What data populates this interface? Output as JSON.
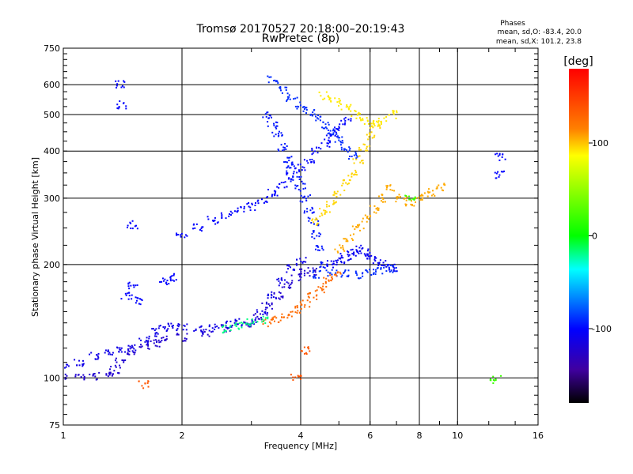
{
  "chart_data": {
    "type": "scatter",
    "title": "Tromsø 20170527 20:18:00–20:19:43",
    "subtitle": "RwPretec (8p)",
    "xlabel": "Frequency [MHz]",
    "ylabel": "Stationary phase Virtual Height [km]",
    "x_scale": "log",
    "y_scale": "log",
    "xlim": [
      1,
      16
    ],
    "ylim": [
      75,
      750
    ],
    "x_ticks": [
      1,
      2,
      4,
      6,
      8,
      10,
      16
    ],
    "y_ticks": [
      75,
      100,
      200,
      300,
      400,
      500,
      600,
      750
    ],
    "grid": true,
    "phase_stats": {
      "header": "Phases",
      "line_o": "mean, sd,O: -83.4, 20.0",
      "line_x": "mean, sd,X: 101.2, 23.8"
    },
    "colorbar": {
      "label": "[deg]",
      "range": [
        -180,
        180
      ],
      "ticks": [
        100,
        0,
        -100
      ],
      "colors": [
        "#ff0000",
        "#ff8000",
        "#ffff00",
        "#00ff00",
        "#00ffff",
        "#0000ff",
        "#4000a0",
        "#000000"
      ]
    },
    "series": [
      {
        "traces": [
          {
            "phase": -120,
            "points": [
              [
                1.0,
                100
              ],
              [
                1.1,
                101
              ],
              [
                1.2,
                101
              ],
              [
                1.3,
                102
              ],
              [
                1.35,
                105
              ],
              [
                1.4,
                110
              ],
              [
                1.5,
                118
              ],
              [
                1.6,
                122
              ],
              [
                1.7,
                124
              ],
              [
                1.8,
                126
              ],
              [
                2.0,
                128
              ],
              [
                2.3,
                132
              ],
              [
                2.6,
                135
              ],
              [
                2.9,
                140
              ],
              [
                3.1,
                145
              ],
              [
                3.3,
                155
              ],
              [
                3.5,
                165
              ],
              [
                3.7,
                175
              ],
              [
                3.9,
                185
              ],
              [
                4.1,
                190
              ],
              [
                4.3,
                192
              ]
            ]
          },
          {
            "phase": -110,
            "points": [
              [
                1.0,
                106
              ],
              [
                1.1,
                110
              ],
              [
                1.2,
                114
              ],
              [
                1.3,
                117
              ],
              [
                1.4,
                118
              ],
              [
                1.5,
                120
              ],
              [
                1.6,
                126
              ],
              [
                1.7,
                132
              ],
              [
                1.8,
                136
              ],
              [
                1.9,
                138
              ],
              [
                2.0,
                136
              ],
              [
                2.2,
                134
              ],
              [
                2.4,
                136
              ],
              [
                2.6,
                138
              ],
              [
                2.8,
                140
              ],
              [
                3.0,
                142
              ],
              [
                3.2,
                150
              ],
              [
                3.4,
                165
              ],
              [
                3.6,
                180
              ],
              [
                3.8,
                195
              ],
              [
                4.0,
                205
              ]
            ]
          },
          {
            "phase": -100,
            "points": [
              [
                2.0,
                240
              ],
              [
                2.2,
                250
              ],
              [
                2.4,
                262
              ],
              [
                2.6,
                270
              ],
              [
                2.8,
                278
              ],
              [
                3.0,
                285
              ],
              [
                3.2,
                296
              ],
              [
                3.4,
                310
              ],
              [
                3.6,
                325
              ],
              [
                3.8,
                345
              ],
              [
                4.0,
                360
              ],
              [
                4.2,
                380
              ],
              [
                4.4,
                400
              ],
              [
                4.6,
                420
              ],
              [
                4.8,
                440
              ],
              [
                5.0,
                460
              ],
              [
                5.2,
                480
              ]
            ]
          },
          {
            "phase": -95,
            "points": [
              [
                3.3,
                500
              ],
              [
                3.4,
                470
              ],
              [
                3.5,
                440
              ],
              [
                3.6,
                410
              ],
              [
                3.7,
                380
              ],
              [
                3.8,
                360
              ],
              [
                3.9,
                340
              ],
              [
                4.0,
                320
              ],
              [
                4.1,
                300
              ],
              [
                4.2,
                280
              ],
              [
                4.3,
                260
              ],
              [
                4.4,
                240
              ],
              [
                4.5,
                220
              ],
              [
                4.6,
                200
              ]
            ]
          },
          {
            "phase": -90,
            "points": [
              [
                3.4,
                620
              ],
              [
                3.6,
                580
              ],
              [
                3.8,
                550
              ],
              [
                4.0,
                530
              ],
              [
                4.2,
                510
              ],
              [
                4.4,
                490
              ],
              [
                4.6,
                470
              ],
              [
                4.8,
                450
              ],
              [
                5.0,
                430
              ],
              [
                5.2,
                410
              ],
              [
                5.4,
                390
              ]
            ]
          },
          {
            "phase": -105,
            "points": [
              [
                4.8,
                200
              ],
              [
                5.0,
                205
              ],
              [
                5.2,
                210
              ],
              [
                5.4,
                215
              ],
              [
                5.6,
                220
              ],
              [
                5.8,
                215
              ],
              [
                6.0,
                210
              ],
              [
                6.2,
                205
              ],
              [
                6.5,
                200
              ],
              [
                6.8,
                196
              ]
            ]
          },
          {
            "phase": -90,
            "points": [
              [
                4.4,
                188
              ],
              [
                4.8,
                190
              ],
              [
                5.2,
                189
              ],
              [
                5.6,
                188
              ],
              [
                6.0,
                190
              ],
              [
                6.4,
                192
              ],
              [
                6.8,
                195
              ]
            ]
          },
          {
            "phase": 130,
            "points": [
              [
                3.3,
                140
              ],
              [
                3.5,
                143
              ],
              [
                3.7,
                147
              ],
              [
                3.9,
                152
              ],
              [
                4.1,
                158
              ],
              [
                4.3,
                165
              ],
              [
                4.5,
                172
              ],
              [
                4.7,
                180
              ],
              [
                4.9,
                188
              ]
            ]
          },
          {
            "phase": 100,
            "points": [
              [
                4.4,
                260
              ],
              [
                4.6,
                275
              ],
              [
                4.8,
                290
              ],
              [
                5.0,
                310
              ],
              [
                5.2,
                330
              ],
              [
                5.4,
                350
              ],
              [
                5.6,
                380
              ],
              [
                5.8,
                410
              ],
              [
                6.0,
                440
              ],
              [
                6.2,
                470
              ]
            ]
          },
          {
            "phase": 110,
            "points": [
              [
                5.0,
                220
              ],
              [
                5.3,
                235
              ],
              [
                5.6,
                250
              ],
              [
                5.9,
                265
              ],
              [
                6.2,
                280
              ],
              [
                6.5,
                300
              ],
              [
                6.8,
                320
              ],
              [
                7.2,
                300
              ],
              [
                7.6,
                290
              ],
              [
                8.0,
                300
              ],
              [
                8.5,
                310
              ],
              [
                9.0,
                320
              ]
            ]
          },
          {
            "phase": 95,
            "points": [
              [
                4.6,
                560
              ],
              [
                4.9,
                540
              ],
              [
                5.2,
                520
              ],
              [
                5.5,
                500
              ],
              [
                5.8,
                480
              ],
              [
                6.1,
                470
              ],
              [
                6.4,
                480
              ],
              [
                6.8,
                500
              ]
            ]
          },
          {
            "phase": -20,
            "points": [
              [
                2.6,
                135
              ],
              [
                2.8,
                138
              ],
              [
                3.0,
                140
              ],
              [
                3.2,
                143
              ]
            ]
          },
          {
            "phase": -100,
            "points": [
              [
                1.4,
                600
              ],
              [
                1.4,
                530
              ],
              [
                1.5,
                255
              ],
              [
                1.5,
                175
              ],
              [
                1.45,
                165
              ],
              [
                1.55,
                160
              ],
              [
                1.8,
                180
              ],
              [
                1.9,
                185
              ],
              [
                12.8,
                385
              ],
              [
                12.8,
                345
              ]
            ]
          },
          {
            "phase": 140,
            "points": [
              [
                1.6,
                96
              ],
              [
                3.9,
                101
              ],
              [
                4.1,
                118
              ]
            ]
          },
          {
            "phase": 20,
            "points": [
              [
                12.5,
                99
              ],
              [
                7.6,
                300
              ]
            ]
          }
        ]
      }
    ]
  }
}
